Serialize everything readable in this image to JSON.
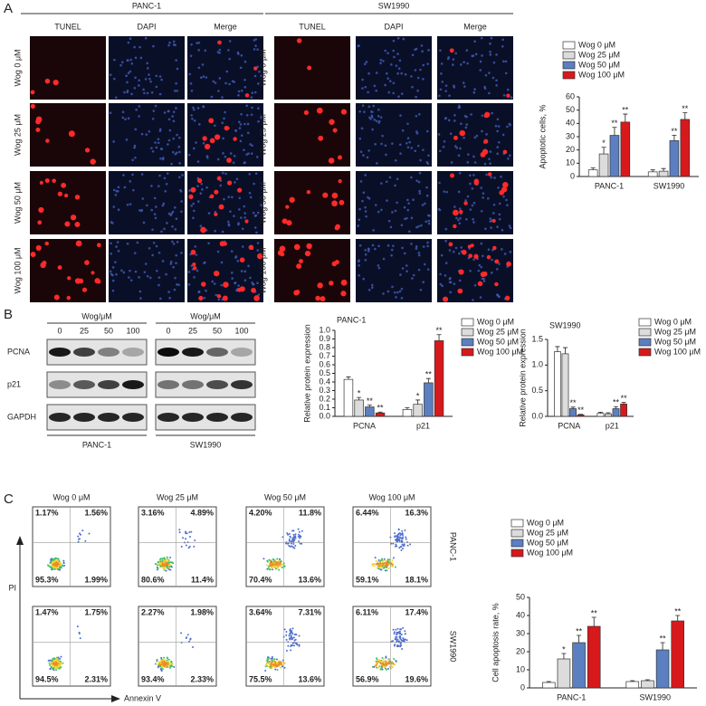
{
  "panel_a": {
    "label": "A",
    "groups": [
      {
        "title": "PANC-1",
        "columns": [
          "TUNEL",
          "DAPI",
          "Merge"
        ]
      },
      {
        "title": "SW1990",
        "columns": [
          "TUNEL",
          "DAPI",
          "Merge"
        ]
      }
    ],
    "rows": [
      "Wog 0 μM",
      "Wog 25 μM",
      "Wog 50 μM",
      "Wog 100 μM"
    ]
  },
  "panel_b": {
    "label": "B",
    "blots": [
      {
        "header": "Wog/μM",
        "doses": [
          "0",
          "25",
          "50",
          "100"
        ],
        "cell_line": "PANC-1"
      },
      {
        "header": "Wog/μM",
        "doses": [
          "0",
          "25",
          "50",
          "100"
        ],
        "cell_line": "SW1990"
      }
    ],
    "proteins": [
      "PCNA",
      "p21",
      "GAPDH"
    ]
  },
  "panel_c": {
    "label": "C",
    "columns": [
      "Wog 0 μM",
      "Wog 25 μM",
      "Wog 50 μM",
      "Wog 100 μM"
    ],
    "y_axis": "PI",
    "x_axis": "Annexin V",
    "rows": [
      {
        "cell_line": "PANC-1",
        "plots": [
          [
            "1.17%",
            "1.56%",
            "95.3%",
            "1.99%"
          ],
          [
            "3.16%",
            "4.89%",
            "80.6%",
            "11.4%"
          ],
          [
            "4.20%",
            "11.8%",
            "70.4%",
            "13.6%"
          ],
          [
            "6.44%",
            "16.3%",
            "59.1%",
            "18.1%"
          ]
        ]
      },
      {
        "cell_line": "SW1990",
        "plots": [
          [
            "1.47%",
            "1.75%",
            "94.5%",
            "2.31%"
          ],
          [
            "2.27%",
            "1.98%",
            "93.4%",
            "2.33%"
          ],
          [
            "3.64%",
            "7.31%",
            "75.5%",
            "13.6%"
          ],
          [
            "6.11%",
            "17.4%",
            "56.9%",
            "19.6%"
          ]
        ]
      }
    ]
  },
  "chart_data": [
    {
      "type": "bar",
      "y_label": "Apoptotic cells, %",
      "categories": [
        "PANC-1",
        "SW1990"
      ],
      "ylim": [
        0,
        60
      ],
      "yticks": [
        0,
        10,
        20,
        30,
        40,
        50,
        60
      ],
      "series": [
        {
          "name": "Wog 0 μM",
          "color": "#ffffff",
          "values": [
            5,
            3.5
          ],
          "errors": [
            1.5,
            1.5
          ],
          "stars": [
            null,
            null
          ]
        },
        {
          "name": "Wog 25 μM",
          "color": "#dcdcdc",
          "values": [
            17,
            4
          ],
          "errors": [
            5,
            2
          ],
          "stars": [
            "*",
            null
          ]
        },
        {
          "name": "Wog 50 μM",
          "color": "#5b7fc0",
          "values": [
            31,
            27
          ],
          "errors": [
            6,
            4
          ],
          "stars": [
            "**",
            "**"
          ]
        },
        {
          "name": "Wog 100 μM",
          "color": "#d7191c",
          "values": [
            41,
            43
          ],
          "errors": [
            6,
            5
          ],
          "stars": [
            "**",
            "**"
          ]
        }
      ]
    },
    {
      "type": "bar",
      "title": "PANC-1",
      "y_label": "Relative protein expression",
      "categories": [
        "PCNA",
        "p21"
      ],
      "ylim": [
        0,
        1
      ],
      "yticks": [
        {
          "value": 0,
          "label": "0.0"
        },
        0.1,
        0.2,
        0.3,
        0.4,
        0.5,
        0.6,
        0.7,
        0.8,
        0.9,
        {
          "value": 1,
          "label": "1.0"
        }
      ],
      "series": [
        {
          "name": "Wog 0 μM",
          "color": "#ffffff",
          "values": [
            0.43,
            0.08
          ],
          "errors": [
            0.03,
            0.02
          ],
          "stars": [
            null,
            null
          ]
        },
        {
          "name": "Wog 25 μM",
          "color": "#dcdcdc",
          "values": [
            0.19,
            0.14
          ],
          "errors": [
            0.03,
            0.05
          ],
          "stars": [
            "*",
            "*"
          ]
        },
        {
          "name": "Wog 50 μM",
          "color": "#5b7fc0",
          "values": [
            0.11,
            0.39
          ],
          "errors": [
            0.02,
            0.05
          ],
          "stars": [
            "**",
            "**"
          ]
        },
        {
          "name": "Wog 100 μM",
          "color": "#d7191c",
          "values": [
            0.04,
            0.88
          ],
          "errors": [
            0.01,
            0.07
          ],
          "stars": [
            "**",
            "**"
          ]
        }
      ]
    },
    {
      "type": "bar",
      "title": "SW1990",
      "y_label": "Relative protein expression",
      "categories": [
        "PCNA",
        "p21"
      ],
      "ylim": [
        0,
        1.5
      ],
      "yticks": [
        {
          "value": 0,
          "label": "0.0"
        },
        0.5,
        {
          "value": 1,
          "label": "1.0"
        },
        1.5
      ],
      "series": [
        {
          "name": "Wog 0 μM",
          "color": "#ffffff",
          "values": [
            1.26,
            0.06
          ],
          "errors": [
            0.1,
            0.02
          ],
          "stars": [
            null,
            null
          ]
        },
        {
          "name": "Wog 25 μM",
          "color": "#dcdcdc",
          "values": [
            1.22,
            0.05
          ],
          "errors": [
            0.12,
            0.02
          ],
          "stars": [
            null,
            null
          ]
        },
        {
          "name": "Wog 50 μM",
          "color": "#5b7fc0",
          "values": [
            0.15,
            0.15
          ],
          "errors": [
            0.03,
            0.04
          ],
          "stars": [
            "**",
            "**"
          ]
        },
        {
          "name": "Wog 100 μM",
          "color": "#d7191c",
          "values": [
            0.03,
            0.24
          ],
          "errors": [
            0.01,
            0.03
          ],
          "stars": [
            "**",
            "**"
          ]
        }
      ]
    },
    {
      "type": "bar",
      "y_label": "Cell apoptosis rate, %",
      "categories": [
        "PANC-1",
        "SW1990"
      ],
      "ylim": [
        0,
        50
      ],
      "yticks": [
        0,
        10,
        20,
        30,
        40,
        50
      ],
      "series": [
        {
          "name": "Wog 0 μM",
          "color": "#ffffff",
          "values": [
            3,
            3.5
          ],
          "errors": [
            0.5,
            0.5
          ],
          "stars": [
            null,
            null
          ]
        },
        {
          "name": "Wog 25 μM",
          "color": "#dcdcdc",
          "values": [
            16,
            4
          ],
          "errors": [
            3,
            0.5
          ],
          "stars": [
            "*",
            null
          ]
        },
        {
          "name": "Wog 50 μM",
          "color": "#5b7fc0",
          "values": [
            25,
            21
          ],
          "errors": [
            4,
            4
          ],
          "stars": [
            "**",
            "**"
          ]
        },
        {
          "name": "Wog 100 μM",
          "color": "#d7191c",
          "values": [
            34,
            37
          ],
          "errors": [
            5,
            3
          ],
          "stars": [
            "**",
            "**"
          ]
        }
      ]
    }
  ]
}
